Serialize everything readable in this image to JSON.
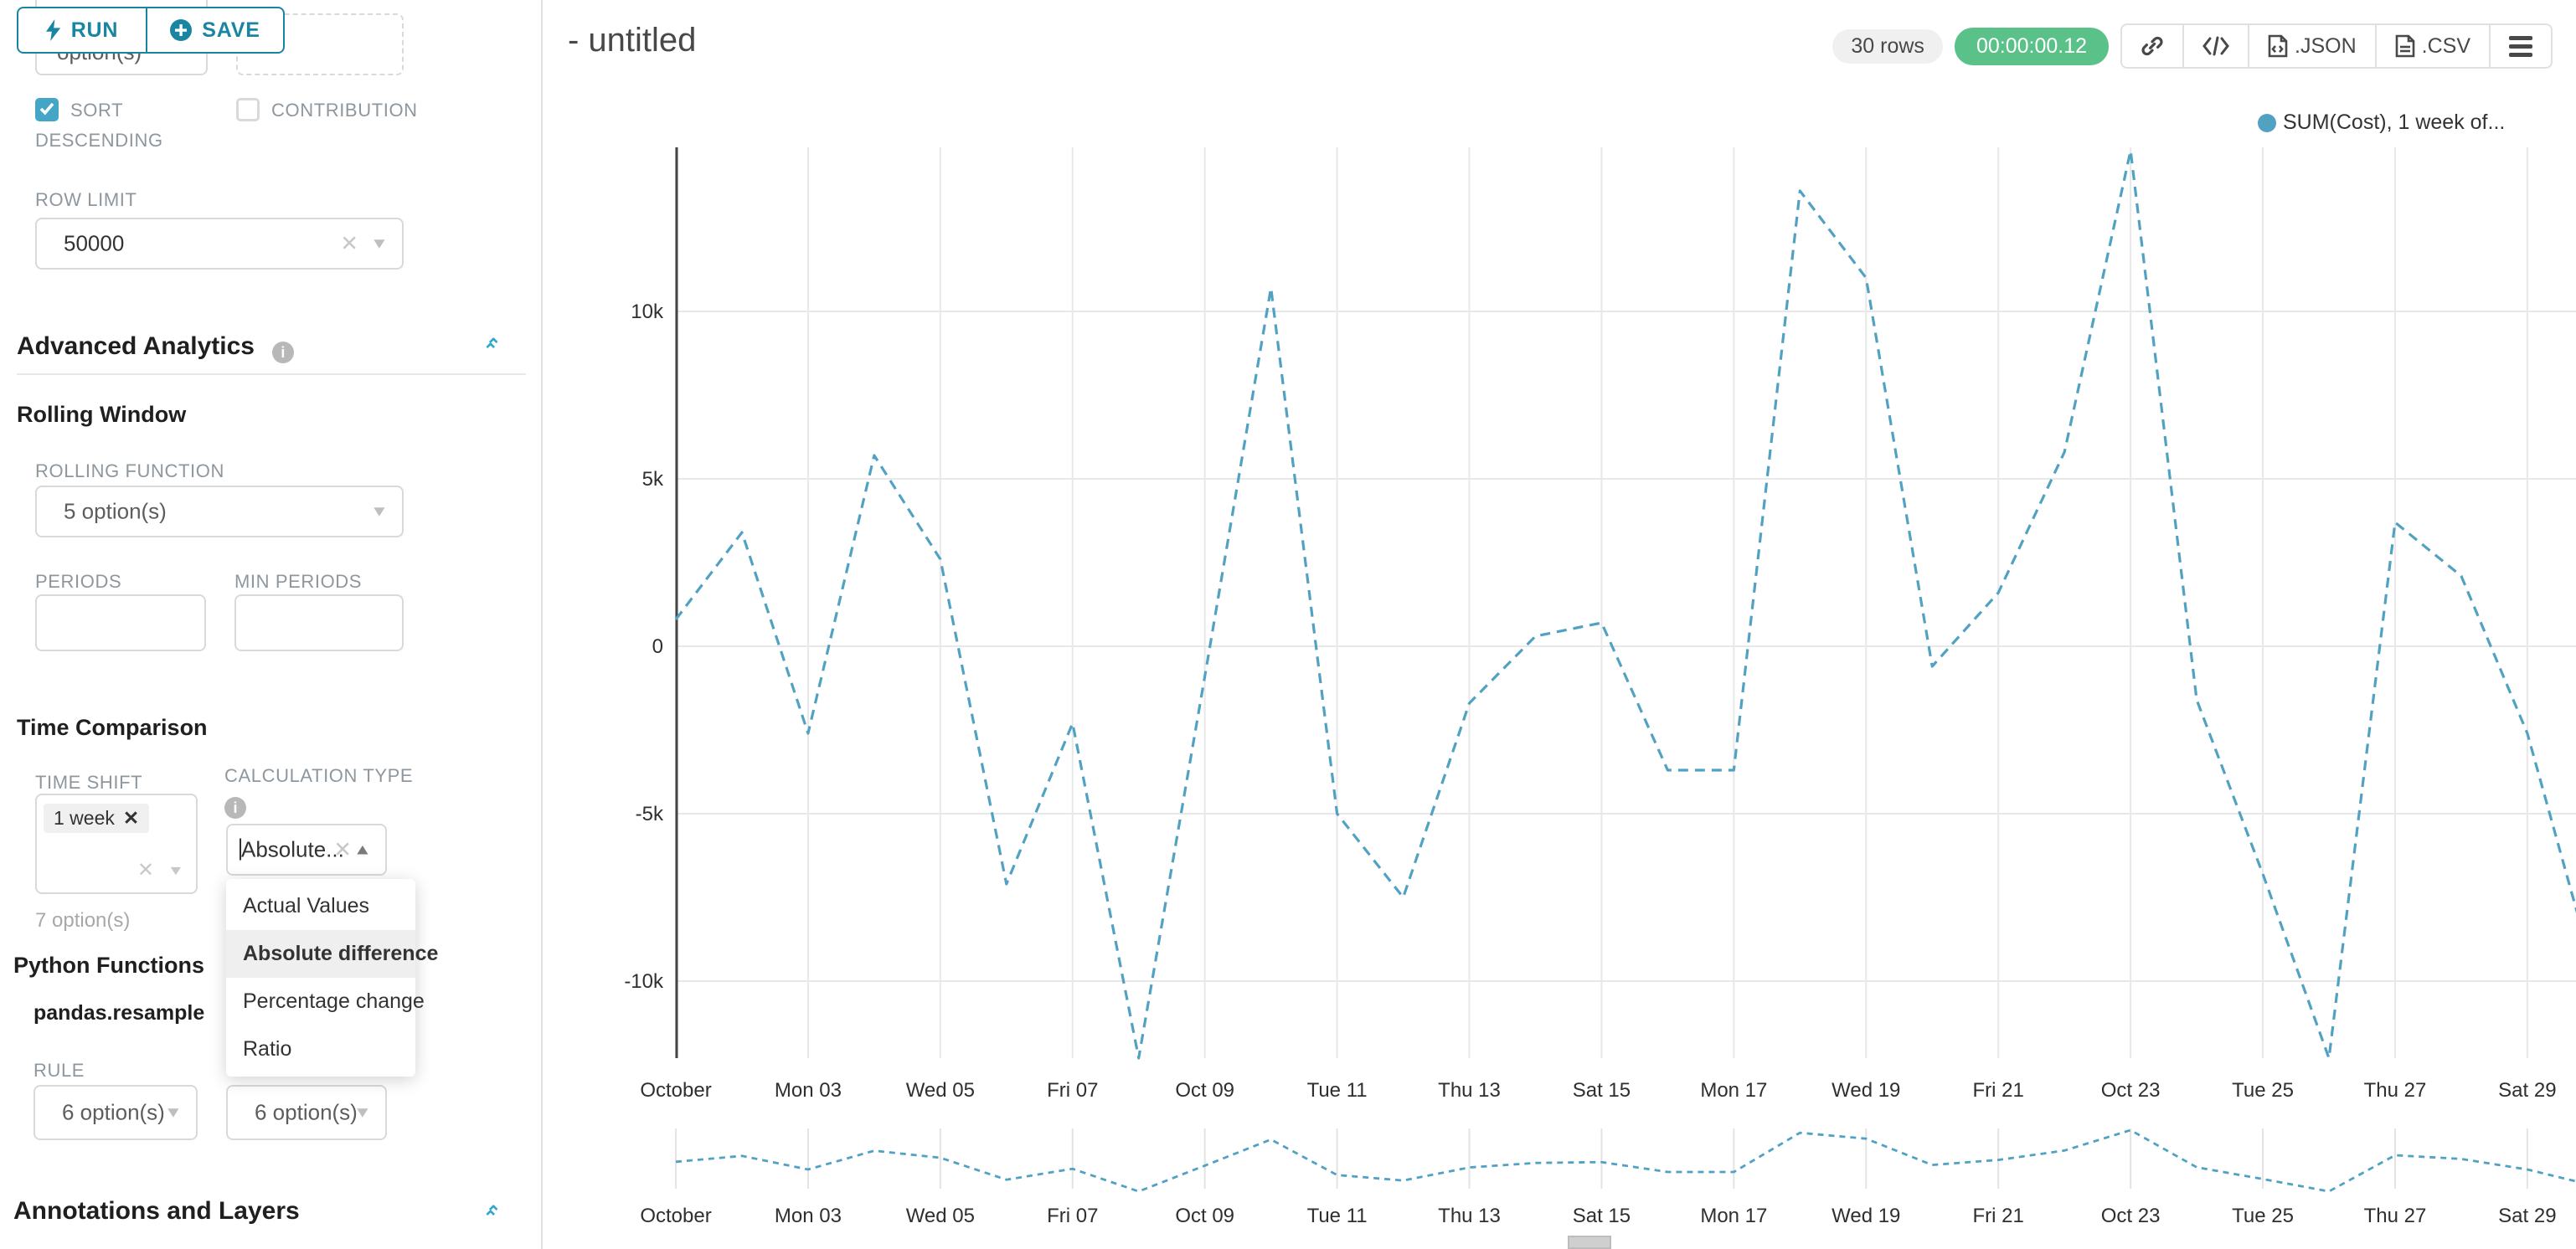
{
  "toolbar": {
    "run_label": "RUN",
    "save_label": "SAVE"
  },
  "sidebar": {
    "truncated_select_text": "option(s)",
    "sort_descending": {
      "label": "SORT DESCENDING",
      "checked": true
    },
    "contribution": {
      "label": "CONTRIBUTION",
      "checked": false
    },
    "row_limit": {
      "label": "ROW LIMIT",
      "value": "50000"
    },
    "advanced_analytics": {
      "title": "Advanced Analytics"
    },
    "rolling_window": {
      "title": "Rolling Window",
      "rolling_function_label": "ROLLING FUNCTION",
      "rolling_function_placeholder": "5 option(s)",
      "periods_label": "PERIODS",
      "min_periods_label": "MIN PERIODS"
    },
    "time_comparison": {
      "title": "Time Comparison",
      "time_shift_label": "TIME SHIFT",
      "time_shift_tag": "1 week",
      "time_shift_helper": "7 option(s)",
      "calculation_type_label": "CALCULATION TYPE",
      "calculation_type_value": "Absolute...",
      "calculation_type_options": [
        "Actual Values",
        "Absolute difference",
        "Percentage change",
        "Ratio"
      ],
      "calculation_type_selected": "Absolute difference"
    },
    "python_functions": {
      "title": "Python Functions",
      "subtitle": "pandas.resample",
      "rule_label": "RULE",
      "rule_placeholder": "6 option(s)",
      "method_placeholder": "6 option(s)"
    },
    "annotations": {
      "title": "Annotations and Layers"
    }
  },
  "header": {
    "title": "- untitled",
    "rows_badge": "30 rows",
    "timer": "00:00:00.12",
    "export_json": ".JSON",
    "export_csv": ".CSV"
  },
  "chart_data": {
    "type": "line",
    "title": "",
    "legend_label": "SUM(Cost), 1 week of...",
    "line_color": "#51a2c2",
    "line_style": "dashed",
    "grid": true,
    "legend_position": "top-right",
    "x": [
      "Oct 01",
      "Oct 02",
      "Oct 03",
      "Oct 04",
      "Oct 05",
      "Oct 06",
      "Oct 07",
      "Oct 08",
      "Oct 09",
      "Oct 10",
      "Oct 11",
      "Oct 12",
      "Oct 13",
      "Oct 14",
      "Oct 15",
      "Oct 16",
      "Oct 17",
      "Oct 18",
      "Oct 19",
      "Oct 20",
      "Oct 21",
      "Oct 22",
      "Oct 23",
      "Oct 24",
      "Oct 25",
      "Oct 26",
      "Oct 27",
      "Oct 28",
      "Oct 29",
      "Oct 30"
    ],
    "x_tick_labels": [
      "October",
      "Mon 03",
      "Wed 05",
      "Fri 07",
      "Oct 09",
      "Tue 11",
      "Thu 13",
      "Sat 15",
      "Mon 17",
      "Wed 19",
      "Fri 21",
      "Oct 23",
      "Tue 25",
      "Thu 27",
      "Sat 29"
    ],
    "y_ticks": [
      {
        "label": "10k",
        "value": 10000
      },
      {
        "label": "5k",
        "value": 5000
      },
      {
        "label": "0",
        "value": 0
      },
      {
        "label": "-5k",
        "value": -5000
      },
      {
        "label": "-10k",
        "value": -10000
      }
    ],
    "ylim": [
      -12400,
      14900
    ],
    "series": [
      {
        "name": "SUM(Cost), 1 week of...",
        "values": [
          800,
          3400,
          -2600,
          5700,
          2600,
          -7100,
          -2300,
          -12300,
          -900,
          10700,
          -5000,
          -7500,
          -1700,
          300,
          700,
          -3700,
          -3700,
          13600,
          11000,
          -600,
          1600,
          5800,
          14800,
          -1600,
          -6800,
          -12300,
          3700,
          2100,
          -2600,
          -9700
        ]
      }
    ],
    "has_mini_preview": true
  }
}
